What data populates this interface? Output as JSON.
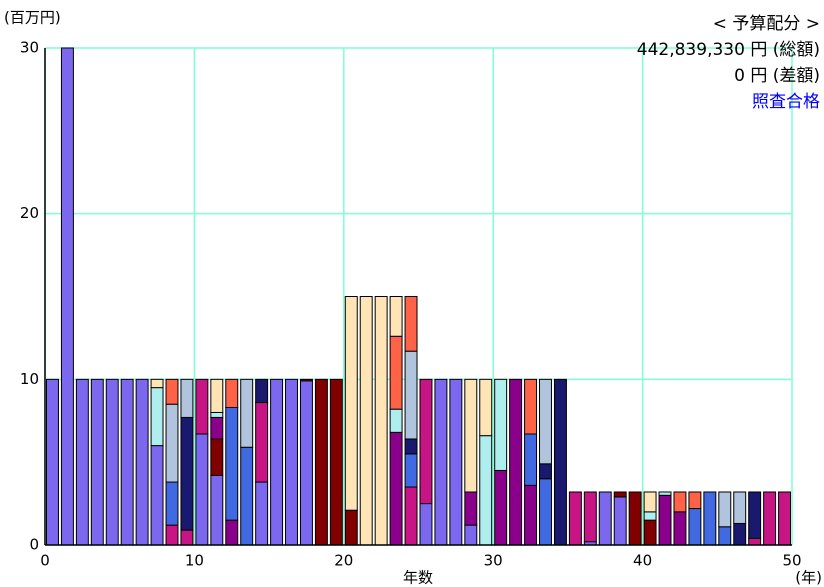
{
  "chart_data": {
    "type": "bar",
    "stacked": true,
    "y_unit_label": "(百万円)",
    "xlabel": "年数",
    "x_unit_label": "(年)",
    "annotations": [
      "< 予算配分 >",
      "442,839,330 円 (総額)",
      "0 円 (差額)",
      "照査合格"
    ],
    "annotation_colors": [
      "#000000",
      "#000000",
      "#000000",
      "#0000ff"
    ],
    "x": [
      0,
      1,
      2,
      3,
      4,
      5,
      6,
      7,
      8,
      9,
      10,
      11,
      12,
      13,
      14,
      15,
      16,
      17,
      18,
      19,
      20,
      21,
      22,
      23,
      24,
      25,
      26,
      27,
      28,
      29,
      30,
      31,
      32,
      33,
      34,
      35,
      36,
      37,
      38,
      39,
      40,
      41,
      42,
      43,
      44,
      45,
      46,
      47,
      48,
      49
    ],
    "xlim": [
      0,
      50
    ],
    "xticks": [
      0,
      10,
      20,
      30,
      40,
      50
    ],
    "ylim": [
      0,
      30
    ],
    "yticks": [
      0,
      10,
      20,
      30
    ],
    "grid": true,
    "grid_color": "#7fffd4",
    "series": [
      {
        "color": "#7b68ee",
        "values": [
          10,
          30,
          10,
          10,
          10,
          10,
          10,
          6.0,
          0,
          0,
          6.7,
          4.2,
          0,
          0,
          3.8,
          10,
          10,
          9.9,
          0,
          0,
          0,
          0,
          0,
          0,
          0,
          2.5,
          10,
          10,
          1.2,
          0,
          0,
          0,
          0,
          0,
          0,
          0,
          0.2,
          3.2,
          2.9,
          0,
          0,
          0,
          0,
          0,
          0,
          0,
          0,
          0,
          0,
          0
        ]
      },
      {
        "color": "#800000",
        "values": [
          0,
          0,
          0,
          0,
          0,
          0,
          0,
          0,
          0,
          0,
          0,
          2.2,
          0,
          0,
          0,
          0,
          0,
          0.1,
          10,
          10,
          2.1,
          0,
          0,
          0,
          0,
          0,
          0,
          0,
          0,
          0,
          0,
          0,
          0,
          0,
          0,
          0,
          0,
          0,
          0.3,
          3.2,
          1.5,
          0,
          0,
          0,
          0,
          0,
          0,
          0,
          0,
          0
        ]
      },
      {
        "color": "#8b008b",
        "values": [
          0,
          0,
          0,
          0,
          0,
          0,
          0,
          0,
          0,
          0,
          0,
          1.3,
          1.5,
          0,
          0,
          0,
          0,
          0,
          0,
          0,
          0,
          0,
          0,
          6.8,
          0,
          0,
          0,
          0,
          2.0,
          0,
          4.5,
          10,
          3.6,
          0,
          0,
          0,
          0,
          0,
          0,
          0,
          0,
          3.0,
          2.0,
          0,
          0,
          0,
          0,
          0,
          0,
          0
        ]
      },
      {
        "color": "#c71585",
        "values": [
          0,
          0,
          0,
          0,
          0,
          0,
          0,
          0,
          1.2,
          0.9,
          3.3,
          0,
          0,
          0,
          4.8,
          0,
          0,
          0,
          0,
          0,
          0,
          0,
          0,
          0,
          3.5,
          7.5,
          0,
          0,
          0,
          0,
          0,
          0,
          0,
          0,
          0,
          3.2,
          3.0,
          0,
          0,
          0,
          0,
          0,
          0,
          0,
          0,
          0,
          0,
          0.4,
          3.2,
          3.2
        ]
      },
      {
        "color": "#4169e1",
        "values": [
          0,
          0,
          0,
          0,
          0,
          0,
          0,
          0,
          2.6,
          0,
          0,
          0,
          6.8,
          5.9,
          0,
          0,
          0,
          0,
          0,
          0,
          0,
          0,
          0,
          0,
          2.0,
          0,
          0,
          0,
          0,
          0,
          0,
          0,
          3.1,
          4.0,
          0,
          0,
          0,
          0,
          0,
          0,
          0,
          0,
          0,
          2.2,
          3.2,
          1.1,
          0,
          0,
          0,
          0
        ]
      },
      {
        "color": "#191970",
        "values": [
          0,
          0,
          0,
          0,
          0,
          0,
          0,
          0,
          0,
          6.8,
          0,
          0,
          0,
          0,
          1.4,
          0,
          0,
          0,
          0,
          0,
          0,
          0,
          0,
          0,
          0.9,
          0,
          0,
          0,
          0,
          0,
          0,
          0,
          0,
          0.9,
          10,
          0,
          0,
          0,
          0,
          0,
          0,
          0,
          0,
          0,
          0,
          0,
          1.3,
          2.8,
          0,
          0
        ]
      },
      {
        "color": "#b0c4de",
        "values": [
          0,
          0,
          0,
          0,
          0,
          0,
          0,
          0,
          4.7,
          2.3,
          0,
          0,
          0,
          4.1,
          0,
          0,
          0,
          0,
          0,
          0,
          0,
          0,
          0,
          0,
          5.3,
          0,
          0,
          0,
          0,
          0,
          0,
          0,
          0,
          5.1,
          0,
          0,
          0,
          0,
          0,
          0,
          0,
          0,
          0,
          0,
          0,
          2.1,
          1.9,
          0,
          0,
          0
        ]
      },
      {
        "color": "#afeeee",
        "values": [
          0,
          0,
          0,
          0,
          0,
          0,
          0,
          3.5,
          0,
          0,
          0,
          0.3,
          0,
          0,
          0,
          0,
          0,
          0,
          0,
          0,
          0,
          0,
          0,
          1.4,
          0,
          0,
          0,
          0,
          0,
          6.6,
          5.5,
          0,
          0,
          0,
          0,
          0,
          0,
          0,
          0,
          0,
          0.5,
          0.2,
          0,
          0,
          0,
          0,
          0,
          0,
          0,
          0
        ]
      },
      {
        "color": "#ff6347",
        "values": [
          0,
          0,
          0,
          0,
          0,
          0,
          0,
          0,
          1.5,
          0,
          0,
          0,
          1.7,
          0,
          0,
          0,
          0,
          0,
          0,
          0,
          0,
          0,
          0,
          4.4,
          3.3,
          0,
          0,
          0,
          0,
          0,
          0,
          0,
          3.3,
          0,
          0,
          0,
          0,
          0,
          0,
          0,
          0,
          0,
          1.2,
          1.0,
          0,
          0,
          0,
          0,
          0,
          0
        ]
      },
      {
        "color": "#ffe4b5",
        "values": [
          0,
          0,
          0,
          0,
          0,
          0,
          0,
          0.5,
          0,
          0,
          0,
          2.0,
          0,
          0,
          0,
          0,
          0,
          0,
          0,
          0,
          12.9,
          15,
          15,
          2.4,
          0,
          0,
          0,
          0,
          6.8,
          3.4,
          0,
          0,
          0,
          0,
          0,
          0,
          0,
          0,
          0,
          0,
          1.2,
          0,
          0,
          0,
          0,
          0,
          0,
          0,
          0,
          0
        ]
      }
    ]
  }
}
